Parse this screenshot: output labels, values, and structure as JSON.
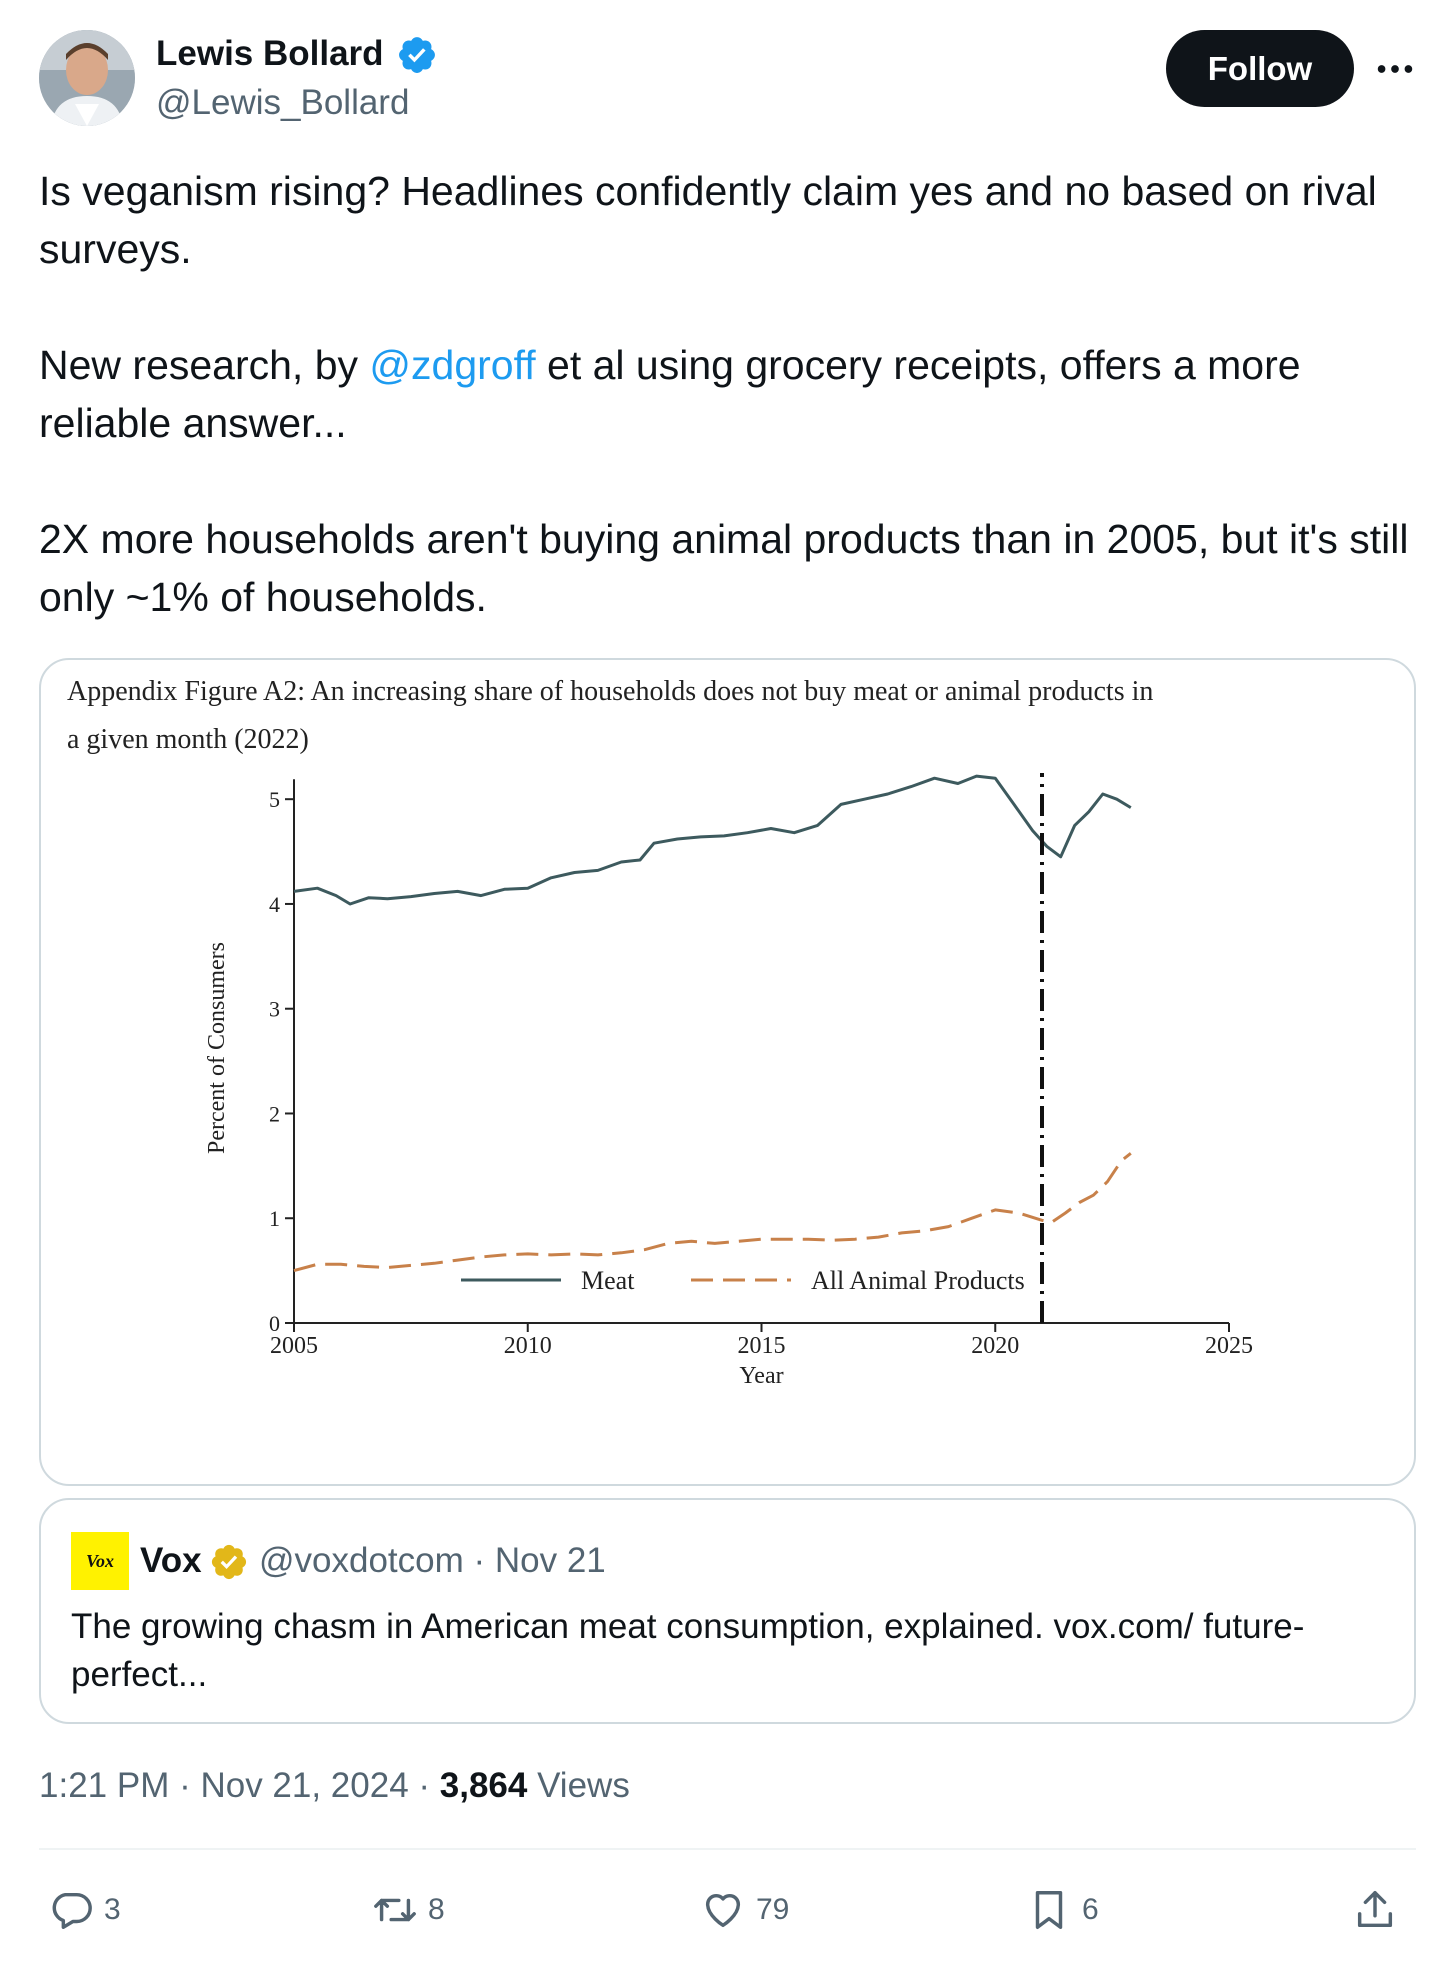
{
  "author": {
    "name": "Lewis Bollard",
    "handle": "@Lewis_Bollard",
    "follow_label": "Follow",
    "verified": true,
    "verified_color": "#1d9bf0"
  },
  "tweet": {
    "p1": "Is veganism rising? Headlines confidently claim yes and no based on rival surveys.",
    "p2_before": "New research, by ",
    "p2_mention": "@zdgroff",
    "p2_after": " et al using grocery receipts, offers a more reliable answer...",
    "p3": "2X more households aren't buying animal products than in 2005, but it's still only ~1% of households."
  },
  "chart_data": {
    "type": "line",
    "title_line1": "Appendix Figure A2: An increasing share of households does not buy meat or animal products in",
    "title_line2": "a given month (2022)",
    "xlabel": "Year",
    "ylabel": "Percent of Consumers",
    "xlim": [
      2005,
      2025
    ],
    "ylim": [
      0,
      5.25
    ],
    "xticks": [
      2005,
      2010,
      2015,
      2020,
      2025
    ],
    "yticks": [
      0,
      1,
      2,
      3,
      4,
      5
    ],
    "vline": 2021,
    "series": [
      {
        "name": "Meat",
        "style": "solid",
        "color": "#3d5a5e",
        "x": [
          2005.0,
          2005.5,
          2005.9,
          2006.2,
          2006.6,
          2007.0,
          2007.5,
          2008.0,
          2008.5,
          2009.0,
          2009.5,
          2010.0,
          2010.5,
          2011.0,
          2011.5,
          2012.0,
          2012.4,
          2012.7,
          2013.2,
          2013.7,
          2014.2,
          2014.7,
          2015.2,
          2015.7,
          2016.2,
          2016.7,
          2017.2,
          2017.7,
          2018.2,
          2018.7,
          2019.2,
          2019.6,
          2020.0,
          2020.4,
          2020.8,
          2021.1,
          2021.4,
          2021.7,
          2022.0,
          2022.3,
          2022.6,
          2022.9
        ],
        "y": [
          4.12,
          4.15,
          4.08,
          4.0,
          4.06,
          4.05,
          4.07,
          4.1,
          4.12,
          4.08,
          4.14,
          4.15,
          4.25,
          4.3,
          4.32,
          4.4,
          4.42,
          4.58,
          4.62,
          4.64,
          4.65,
          4.68,
          4.72,
          4.68,
          4.75,
          4.95,
          5.0,
          5.05,
          5.12,
          5.2,
          5.15,
          5.22,
          5.2,
          4.95,
          4.7,
          4.55,
          4.45,
          4.75,
          4.88,
          5.05,
          5.0,
          4.92
        ]
      },
      {
        "name": "All Animal Products",
        "style": "dashed",
        "color": "#c8814a",
        "x": [
          2005.0,
          2005.5,
          2006.0,
          2006.5,
          2007.0,
          2007.5,
          2008.0,
          2008.5,
          2009.0,
          2009.5,
          2010.0,
          2010.5,
          2011.0,
          2011.5,
          2012.0,
          2012.5,
          2013.0,
          2013.5,
          2014.0,
          2014.5,
          2015.0,
          2015.5,
          2016.0,
          2016.5,
          2017.0,
          2017.5,
          2018.0,
          2018.5,
          2019.0,
          2019.5,
          2020.0,
          2020.5,
          2021.0,
          2021.2,
          2021.5,
          2021.8,
          2022.1,
          2022.4,
          2022.7,
          2022.9
        ],
        "y": [
          0.5,
          0.56,
          0.56,
          0.54,
          0.53,
          0.55,
          0.57,
          0.6,
          0.63,
          0.65,
          0.66,
          0.65,
          0.66,
          0.65,
          0.67,
          0.7,
          0.76,
          0.78,
          0.76,
          0.78,
          0.8,
          0.8,
          0.8,
          0.79,
          0.8,
          0.82,
          0.86,
          0.88,
          0.92,
          1.0,
          1.08,
          1.05,
          0.98,
          0.96,
          1.05,
          1.15,
          1.22,
          1.35,
          1.55,
          1.62
        ]
      }
    ]
  },
  "quote": {
    "logo_text": "Vox",
    "name": "Vox",
    "handle_date": "@voxdotcom · Nov 21",
    "badge_color": "#e2b719",
    "text": "The growing chasm in American meat consumption, explained. vox.com/ future-perfect..."
  },
  "meta": {
    "time_date": "1:21 PM · Nov 21, 2024 · ",
    "views_count": "3,864",
    "views_label": " Views"
  },
  "actions": {
    "replies": "3",
    "reposts": "8",
    "likes": "79",
    "bookmarks": "6"
  }
}
